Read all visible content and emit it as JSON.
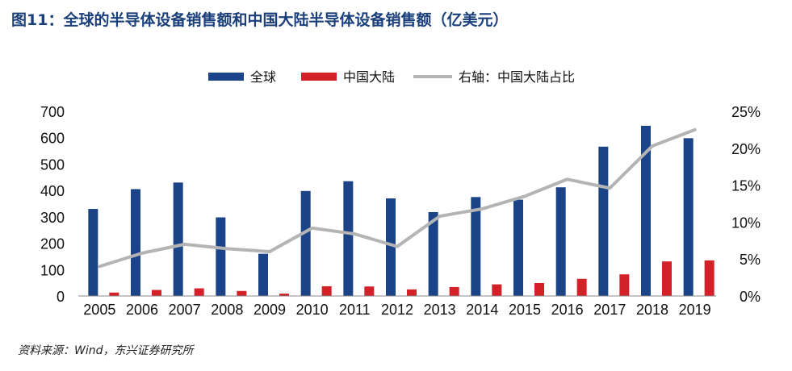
{
  "header": {
    "title": "图11：全球的半导体设备销售额和中国大陆半导体设备销售额（亿美元）"
  },
  "footer": {
    "source": "资料来源：Wind，东兴证券研究所"
  },
  "colors": {
    "global": "#1b4488",
    "china": "#d42027",
    "share": "#b4b4b4",
    "title": "#1a3f7a"
  },
  "chart_data": {
    "type": "bar",
    "categories": [
      "2005",
      "2006",
      "2007",
      "2008",
      "2009",
      "2010",
      "2011",
      "2012",
      "2013",
      "2014",
      "2015",
      "2016",
      "2017",
      "2018",
      "2019"
    ],
    "series": [
      {
        "name": "全球",
        "type": "bar",
        "axis": "left",
        "values": [
          330,
          405,
          430,
          298,
          160,
          398,
          435,
          370,
          318,
          375,
          365,
          412,
          566,
          645,
          598
        ]
      },
      {
        "name": "中国大陆",
        "type": "bar",
        "axis": "left",
        "values": [
          13,
          23,
          29,
          19,
          9,
          37,
          36,
          25,
          34,
          44,
          49,
          65,
          82,
          131,
          135
        ]
      },
      {
        "name": "右轴：中国大陆占比",
        "type": "line",
        "axis": "right",
        "values": [
          4.0,
          5.8,
          7.0,
          6.4,
          6.0,
          9.2,
          8.4,
          6.7,
          10.8,
          11.8,
          13.5,
          15.8,
          14.6,
          20.3,
          22.5
        ]
      }
    ],
    "y_left": {
      "ylim": [
        0,
        700
      ],
      "ticks": [
        "0",
        "100",
        "200",
        "300",
        "400",
        "500",
        "600",
        "700"
      ]
    },
    "y_right": {
      "ylim": [
        0,
        25
      ],
      "ticks": [
        "0%",
        "5%",
        "10%",
        "15%",
        "20%",
        "25%"
      ]
    },
    "legend_position": "top-center",
    "grid": false
  }
}
